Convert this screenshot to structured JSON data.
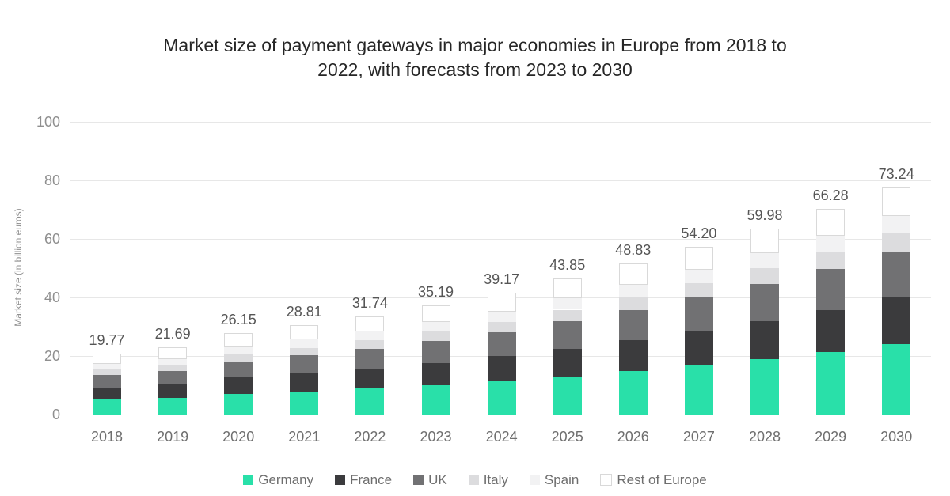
{
  "chart_data": {
    "type": "bar",
    "stacked": true,
    "title_line1": "Market size of payment gateways in major economies in Europe from 2018 to",
    "title_line2": "2022, with forecasts from 2023 to 2030",
    "ylabel": "Market size (in billion euros)",
    "ylim": [
      0,
      100
    ],
    "yticks": [
      "0",
      "20",
      "40",
      "60",
      "80",
      "100"
    ],
    "grid": true,
    "legend_position": "bottom",
    "categories": [
      "2018",
      "2019",
      "2020",
      "2021",
      "2022",
      "2023",
      "2024",
      "2025",
      "2026",
      "2027",
      "2028",
      "2029",
      "2030"
    ],
    "total_labels": [
      "19.77",
      "21.69",
      "26.15",
      "28.81",
      "31.74",
      "35.19",
      "39.17",
      "43.85",
      "48.83",
      "54.20",
      "59.98",
      "66.28",
      "73.24"
    ],
    "series": [
      {
        "name": "Germany",
        "color": "#29e0a9",
        "values": [
          4.74,
          5.33,
          6.58,
          7.42,
          8.36,
          9.47,
          10.77,
          12.31,
          14.0,
          15.85,
          17.89,
          20.16,
          22.7
        ]
      },
      {
        "name": "France",
        "color": "#3b3b3d",
        "values": [
          4.05,
          4.45,
          5.36,
          5.91,
          6.51,
          7.21,
          8.03,
          8.99,
          10.01,
          11.11,
          12.3,
          13.59,
          15.01
        ]
      },
      {
        "name": "UK",
        "color": "#717173",
        "values": [
          3.95,
          4.34,
          5.23,
          5.76,
          6.35,
          7.04,
          7.83,
          8.77,
          9.77,
          10.84,
          12.0,
          13.26,
          14.65
        ]
      },
      {
        "name": "Italy",
        "color": "#dcdcde",
        "values": [
          1.68,
          1.84,
          2.22,
          2.45,
          2.7,
          2.99,
          3.33,
          3.73,
          4.15,
          4.61,
          5.1,
          5.63,
          6.23
        ]
      },
      {
        "name": "Spain",
        "color": "#f2f2f3",
        "values": [
          1.88,
          2.02,
          2.4,
          2.59,
          2.8,
          3.05,
          3.33,
          3.65,
          3.99,
          4.34,
          4.7,
          5.08,
          5.49
        ]
      },
      {
        "name": "Rest of Europe",
        "color": "#ffffff",
        "border_color": "#d9d9d9",
        "values": [
          3.46,
          3.71,
          4.36,
          4.68,
          5.02,
          5.43,
          5.88,
          6.4,
          6.92,
          7.45,
          8.0,
          8.56,
          9.16
        ]
      }
    ],
    "colors": {
      "background": "#ffffff",
      "gridline": "#e7e7e7",
      "title_text": "#262626",
      "y_tick_text": "#8f8f8f",
      "x_tick_text": "#6f6f6f",
      "data_label_text": "#555555",
      "legend_text": "#6e6e6e"
    }
  }
}
